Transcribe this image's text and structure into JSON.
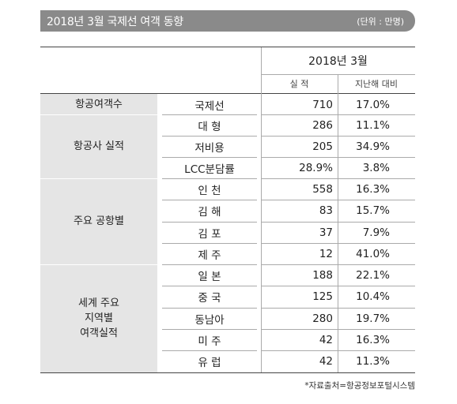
{
  "title": "2018년 3월 국제선 여객 동향",
  "unit": "(단위 : 만명)",
  "header": {
    "period": "2018년  3월",
    "col_actual": "실  적",
    "col_yoy": "지난해 대비"
  },
  "groups": [
    {
      "label": "항공여객수"
    },
    {
      "label": "항공사 실적"
    },
    {
      "label": "주요 공항별"
    },
    {
      "label": "세계 주요\n지역별\n여객실적"
    }
  ],
  "rows": [
    {
      "label": "국제선",
      "actual": "710",
      "yoy": "17.0%"
    },
    {
      "label": "대  형",
      "actual": "286",
      "yoy": "11.1%"
    },
    {
      "label": "저비용",
      "actual": "205",
      "yoy": "34.9%"
    },
    {
      "label": "LCC분담률",
      "actual": "28.9%",
      "yoy": "3.8%"
    },
    {
      "label": "인  천",
      "actual": "558",
      "yoy": "16.3%"
    },
    {
      "label": "김  해",
      "actual": "83",
      "yoy": "15.7%"
    },
    {
      "label": "김  포",
      "actual": "37",
      "yoy": "7.9%"
    },
    {
      "label": "제  주",
      "actual": "12",
      "yoy": "41.0%"
    },
    {
      "label": "일  본",
      "actual": "188",
      "yoy": "22.1%"
    },
    {
      "label": "중  국",
      "actual": "125",
      "yoy": "10.4%"
    },
    {
      "label": "동남아",
      "actual": "280",
      "yoy": "19.7%"
    },
    {
      "label": "미  주",
      "actual": "42",
      "yoy": "16.3%"
    },
    {
      "label": "유  럽",
      "actual": "42",
      "yoy": "11.3%"
    }
  ],
  "source": "*자료출처=항공정보포털시스템"
}
